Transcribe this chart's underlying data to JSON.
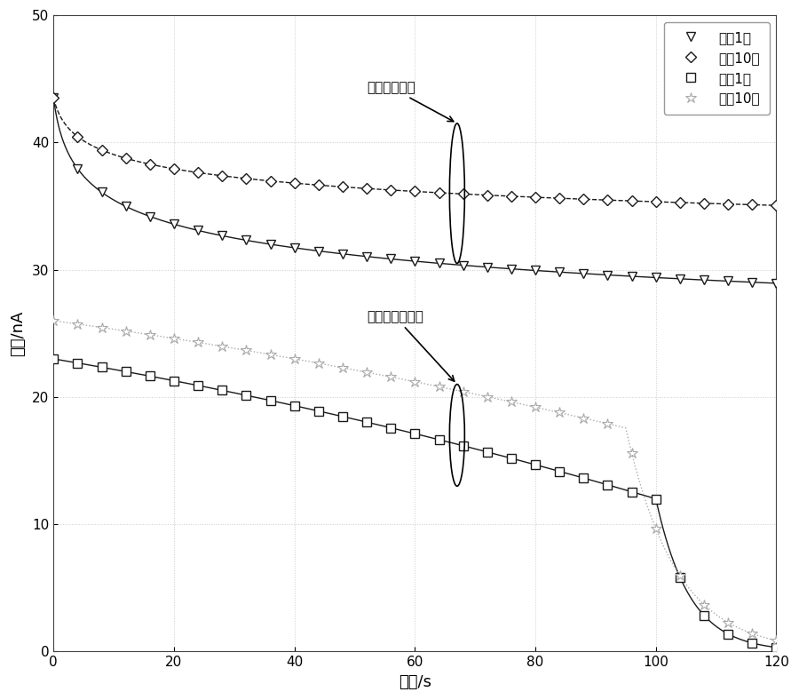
{
  "xlabel": "时间/s",
  "ylabel": "电流/nA",
  "xlim": [
    0,
    120
  ],
  "ylim": [
    0,
    50
  ],
  "xticks": [
    0,
    20,
    40,
    60,
    80,
    100,
    120
  ],
  "yticks": [
    0,
    10,
    20,
    30,
    40,
    50
  ],
  "legend_labels": [
    "运行1年",
    "运行10年",
    "运行1年",
    "运行10年"
  ],
  "annotation1_text": "极化电流曲线",
  "annotation2_text": "去极化电流曲线",
  "color_dark": "#1a1a1a",
  "color_gray": "#aaaaaa",
  "figsize": [
    9.0,
    7.88
  ],
  "dpi": 100,
  "marker_interval": 4
}
